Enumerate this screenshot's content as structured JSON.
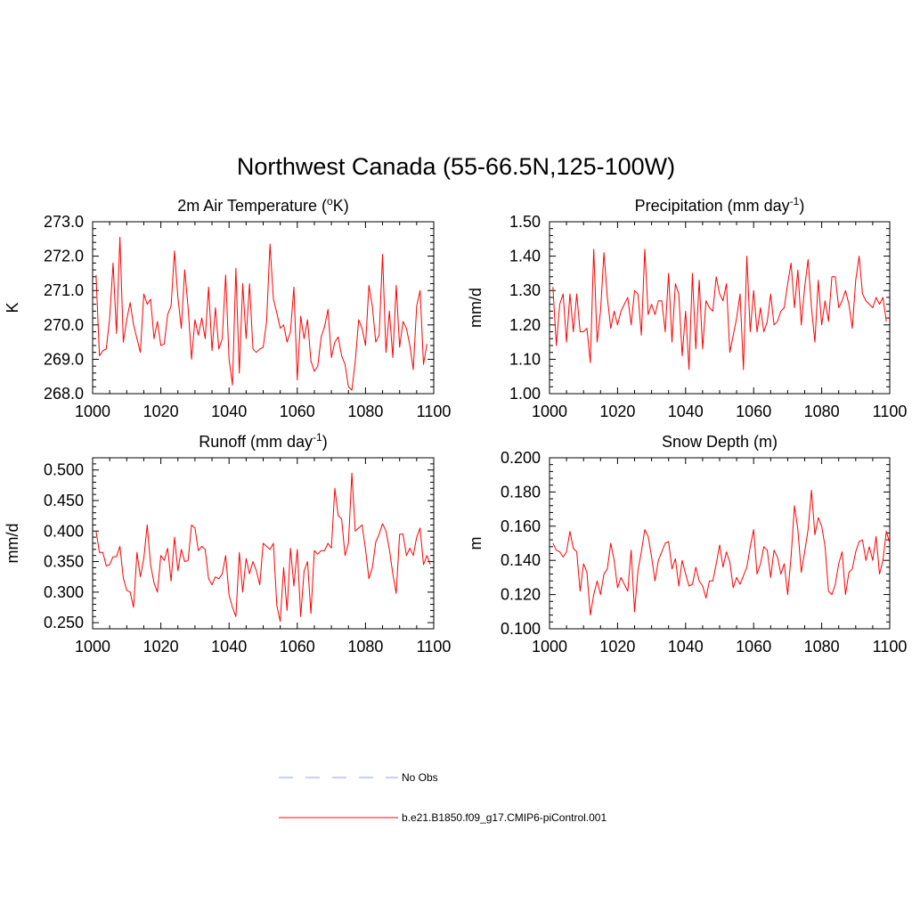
{
  "figure": {
    "title": "Northwest Canada (55-66.5N,125-100W)"
  },
  "colors": {
    "model_line": "#ff0000",
    "obs_line": "#9999ff",
    "axis": "#000000"
  },
  "chart_data": [
    {
      "type": "line",
      "title_main": "2m Air Temperature (",
      "title_sup": "o",
      "title_end": "K)",
      "ylabel": "K",
      "xlabel": "",
      "xlim": [
        1000,
        1100
      ],
      "ylim": [
        268.0,
        273.0
      ],
      "xticks": [
        1000,
        1020,
        1040,
        1060,
        1080,
        1100
      ],
      "xtick_labels": [
        "1000",
        "1020",
        "1040",
        "1060",
        "1080",
        "1100"
      ],
      "yticks": [
        268.0,
        269.0,
        270.0,
        271.0,
        272.0,
        273.0
      ],
      "ytick_labels": [
        "268.0",
        "269.0",
        "270.0",
        "271.0",
        "272.0",
        "273.0"
      ],
      "series": [
        {
          "name": "b.e21.B1850.f09_g17.CMIP6-piControl.001",
          "x_start": 1001,
          "values": [
            271.45,
            269.1,
            269.25,
            269.3,
            270.2,
            271.8,
            269.75,
            272.55,
            269.5,
            270.15,
            270.65,
            270.0,
            269.6,
            269.2,
            270.9,
            270.6,
            270.75,
            269.6,
            270.1,
            269.4,
            269.45,
            270.3,
            270.55,
            272.15,
            270.8,
            269.9,
            271.6,
            270.5,
            269.0,
            270.15,
            269.7,
            270.2,
            269.6,
            271.1,
            269.25,
            270.5,
            269.3,
            269.6,
            271.45,
            269.0,
            268.25,
            271.65,
            268.6,
            271.2,
            269.6,
            271.2,
            269.3,
            269.2,
            269.3,
            269.35,
            270.1,
            272.35,
            270.75,
            270.35,
            269.9,
            270.0,
            269.5,
            269.8,
            271.1,
            268.4,
            270.25,
            269.6,
            270.15,
            268.95,
            268.65,
            268.8,
            269.65,
            269.95,
            270.45,
            269.05,
            269.5,
            269.65,
            269.1,
            268.85,
            268.2,
            268.1,
            268.95,
            270.15,
            269.9,
            269.4,
            271.15,
            270.55,
            269.5,
            269.7,
            272.05,
            269.2,
            270.4,
            269.05,
            271.15,
            269.35,
            270.1,
            269.9,
            269.4,
            268.7,
            270.55,
            271.0,
            268.85,
            269.45
          ]
        }
      ]
    },
    {
      "type": "line",
      "title_main": "Precipitation (mm day",
      "title_sup": "-1",
      "title_end": ")",
      "ylabel": "mm/d",
      "xlabel": "",
      "xlim": [
        1000,
        1100
      ],
      "ylim": [
        1.0,
        1.5
      ],
      "xticks": [
        1000,
        1020,
        1040,
        1060,
        1080,
        1100
      ],
      "xtick_labels": [
        "1000",
        "1020",
        "1040",
        "1060",
        "1080",
        "1100"
      ],
      "yticks": [
        1.0,
        1.1,
        1.2,
        1.3,
        1.4,
        1.5
      ],
      "ytick_labels": [
        "1.00",
        "1.10",
        "1.20",
        "1.30",
        "1.40",
        "1.50"
      ],
      "series": [
        {
          "name": "b.e21.B1850.f09_g17.CMIP6-piControl.001",
          "x_start": 1001,
          "values": [
            1.31,
            1.14,
            1.26,
            1.29,
            1.15,
            1.29,
            1.18,
            1.29,
            1.18,
            1.18,
            1.19,
            1.09,
            1.42,
            1.15,
            1.24,
            1.41,
            1.28,
            1.19,
            1.24,
            1.2,
            1.24,
            1.26,
            1.28,
            1.2,
            1.3,
            1.29,
            1.17,
            1.42,
            1.23,
            1.26,
            1.23,
            1.27,
            1.27,
            1.18,
            1.35,
            1.15,
            1.32,
            1.29,
            1.11,
            1.24,
            1.07,
            1.35,
            1.13,
            1.33,
            1.13,
            1.27,
            1.25,
            1.24,
            1.34,
            1.29,
            1.27,
            1.32,
            1.12,
            1.17,
            1.22,
            1.29,
            1.07,
            1.4,
            1.18,
            1.3,
            1.18,
            1.25,
            1.18,
            1.21,
            1.29,
            1.2,
            1.21,
            1.24,
            1.25,
            1.32,
            1.38,
            1.25,
            1.36,
            1.2,
            1.31,
            1.39,
            1.25,
            1.15,
            1.33,
            1.2,
            1.27,
            1.21,
            1.34,
            1.34,
            1.25,
            1.27,
            1.3,
            1.26,
            1.19,
            1.33,
            1.4,
            1.29,
            1.27,
            1.26,
            1.25,
            1.28,
            1.26,
            1.28,
            1.21
          ]
        }
      ]
    },
    {
      "type": "line",
      "title_main": "Runoff (mm day",
      "title_sup": "-1",
      "title_end": ")",
      "ylabel": "mm/d",
      "xlabel": "",
      "xlim": [
        1000,
        1100
      ],
      "ylim": [
        0.24,
        0.52
      ],
      "xticks": [
        1000,
        1020,
        1040,
        1060,
        1080,
        1100
      ],
      "xtick_labels": [
        "1000",
        "1020",
        "1040",
        "1060",
        "1080",
        "1100"
      ],
      "yticks": [
        0.25,
        0.3,
        0.35,
        0.4,
        0.45,
        0.5
      ],
      "ytick_labels": [
        "0.250",
        "0.300",
        "0.350",
        "0.400",
        "0.450",
        "0.500"
      ],
      "series": [
        {
          "name": "b.e21.B1850.f09_g17.CMIP6-piControl.001",
          "x_start": 1001,
          "values": [
            0.4,
            0.365,
            0.365,
            0.343,
            0.345,
            0.358,
            0.358,
            0.375,
            0.323,
            0.303,
            0.3,
            0.275,
            0.365,
            0.325,
            0.355,
            0.41,
            0.345,
            0.315,
            0.3,
            0.36,
            0.352,
            0.372,
            0.318,
            0.39,
            0.335,
            0.37,
            0.35,
            0.352,
            0.41,
            0.405,
            0.368,
            0.375,
            0.37,
            0.322,
            0.312,
            0.325,
            0.322,
            0.33,
            0.36,
            0.295,
            0.275,
            0.26,
            0.365,
            0.3,
            0.355,
            0.33,
            0.35,
            0.335,
            0.312,
            0.38,
            0.375,
            0.37,
            0.38,
            0.278,
            0.252,
            0.34,
            0.27,
            0.372,
            0.31,
            0.37,
            0.26,
            0.335,
            0.35,
            0.265,
            0.368,
            0.362,
            0.368,
            0.368,
            0.38,
            0.372,
            0.47,
            0.425,
            0.42,
            0.36,
            0.38,
            0.495,
            0.4,
            0.405,
            0.41,
            0.37,
            0.322,
            0.34,
            0.382,
            0.395,
            0.412,
            0.4,
            0.37,
            0.33,
            0.298,
            0.395,
            0.395,
            0.36,
            0.372,
            0.36,
            0.39,
            0.405,
            0.345,
            0.36,
            0.345
          ]
        }
      ]
    },
    {
      "type": "line",
      "title_main": "Snow Depth (m)",
      "title_sup": "",
      "title_end": "",
      "ylabel": "m",
      "xlabel": "",
      "xlim": [
        1000,
        1100
      ],
      "ylim": [
        0.1,
        0.2
      ],
      "xticks": [
        1000,
        1020,
        1040,
        1060,
        1080,
        1100
      ],
      "xtick_labels": [
        "1000",
        "1020",
        "1040",
        "1060",
        "1080",
        "1100"
      ],
      "yticks": [
        0.1,
        0.12,
        0.14,
        0.16,
        0.18,
        0.2
      ],
      "ytick_labels": [
        "0.100",
        "0.120",
        "0.140",
        "0.160",
        "0.180",
        "0.200"
      ],
      "series": [
        {
          "name": "b.e21.B1850.f09_g17.CMIP6-piControl.001",
          "x_start": 1001,
          "values": [
            0.15,
            0.146,
            0.145,
            0.142,
            0.145,
            0.157,
            0.147,
            0.145,
            0.122,
            0.138,
            0.133,
            0.108,
            0.12,
            0.128,
            0.12,
            0.132,
            0.135,
            0.15,
            0.14,
            0.124,
            0.13,
            0.126,
            0.122,
            0.146,
            0.11,
            0.134,
            0.145,
            0.158,
            0.154,
            0.142,
            0.128,
            0.14,
            0.145,
            0.15,
            0.151,
            0.135,
            0.141,
            0.125,
            0.14,
            0.132,
            0.125,
            0.126,
            0.136,
            0.128,
            0.125,
            0.118,
            0.128,
            0.128,
            0.138,
            0.149,
            0.136,
            0.145,
            0.139,
            0.124,
            0.13,
            0.126,
            0.131,
            0.136,
            0.148,
            0.158,
            0.132,
            0.138,
            0.148,
            0.146,
            0.13,
            0.146,
            0.142,
            0.132,
            0.138,
            0.12,
            0.142,
            0.172,
            0.158,
            0.133,
            0.145,
            0.158,
            0.181,
            0.155,
            0.165,
            0.16,
            0.148,
            0.122,
            0.12,
            0.126,
            0.138,
            0.145,
            0.12,
            0.133,
            0.135,
            0.145,
            0.151,
            0.152,
            0.14,
            0.148,
            0.14,
            0.154,
            0.132,
            0.14,
            0.157,
            0.15
          ]
        }
      ]
    }
  ],
  "legend": {
    "items": [
      {
        "label": "No Obs",
        "style": "dashed",
        "color": "#9999ff"
      },
      {
        "label": "b.e21.B1850.f09_g17.CMIP6-piControl.001",
        "style": "solid",
        "color": "#ff0000"
      }
    ]
  }
}
